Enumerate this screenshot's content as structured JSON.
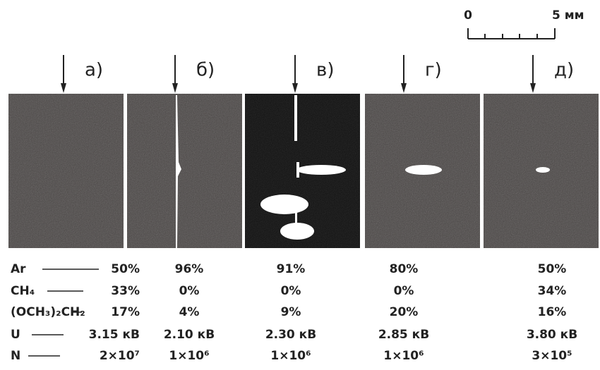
{
  "scale": {
    "start": "0",
    "end": "5 мм"
  },
  "panels": [
    "а)",
    "б)",
    "в)",
    "г)",
    "д)"
  ],
  "table": {
    "rows": [
      {
        "label": "Ar",
        "cells": [
          "50%",
          "96%",
          "91%",
          "80%",
          "50%"
        ]
      },
      {
        "label": "CH₄",
        "cells": [
          "33%",
          "0%",
          "0%",
          "0%",
          "34%"
        ]
      },
      {
        "label": "(OCH₃)₂CH₂",
        "cells": [
          "17%",
          "4%",
          "9%",
          "20%",
          "16%"
        ]
      },
      {
        "label": "U",
        "cells": [
          "3.15 кВ",
          "2.10 кВ",
          "2.30 кВ",
          "2.85 кВ",
          "3.80 кВ"
        ]
      },
      {
        "label": "N",
        "cells": [
          "2×10⁷",
          "1×10⁶",
          "1×10⁶",
          "1×10⁶",
          "3×10⁵"
        ]
      }
    ]
  }
}
